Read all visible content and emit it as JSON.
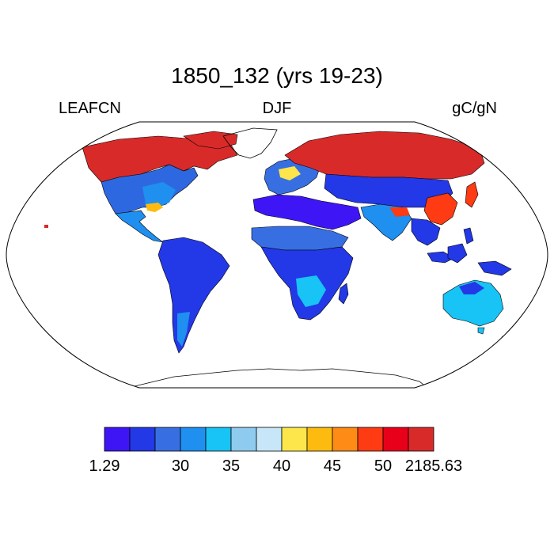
{
  "title": "1850_132 (yrs 19-23)",
  "left_label": "LEAFCN",
  "center_label": "DJF",
  "right_label": "gC/gN",
  "colorbar": {
    "colors": [
      "#3e16f5",
      "#2338e6",
      "#376fe3",
      "#1f8ff0",
      "#18c3f5",
      "#8ecbee",
      "#c7e6f8",
      "#fde64b",
      "#fdbb10",
      "#fd8b15",
      "#fe3b12",
      "#e8001a",
      "#d92a2a"
    ],
    "tick_labels": [
      "1.29",
      "30",
      "35",
      "40",
      "45",
      "50",
      "2185.63"
    ],
    "tick_boundaries": [
      0,
      3,
      5,
      7,
      9,
      11,
      13
    ]
  },
  "map": {
    "projection": "robinson",
    "variable_colors": {
      "north-america-boreal": "#d92a2a",
      "north-america-temperate": "#2e68e0",
      "eastern-usa": "#1f8ff0",
      "central-america": "#1f8ff0",
      "south-america": "#2338e6",
      "greenland-coast": "#d92a2a",
      "europe": "#376fe3",
      "siberia": "#d92a2a",
      "central-asia": "#2338e6",
      "middle-east": "#3e16f5",
      "sahel": "#376fe3",
      "africa": "#2338e6",
      "south-asia": "#1f8ff0",
      "se-asia": "#2338e6",
      "east-china": "#fe3b12",
      "australia": "#18c3f5",
      "new-zealand": "#fdbb10"
    }
  }
}
